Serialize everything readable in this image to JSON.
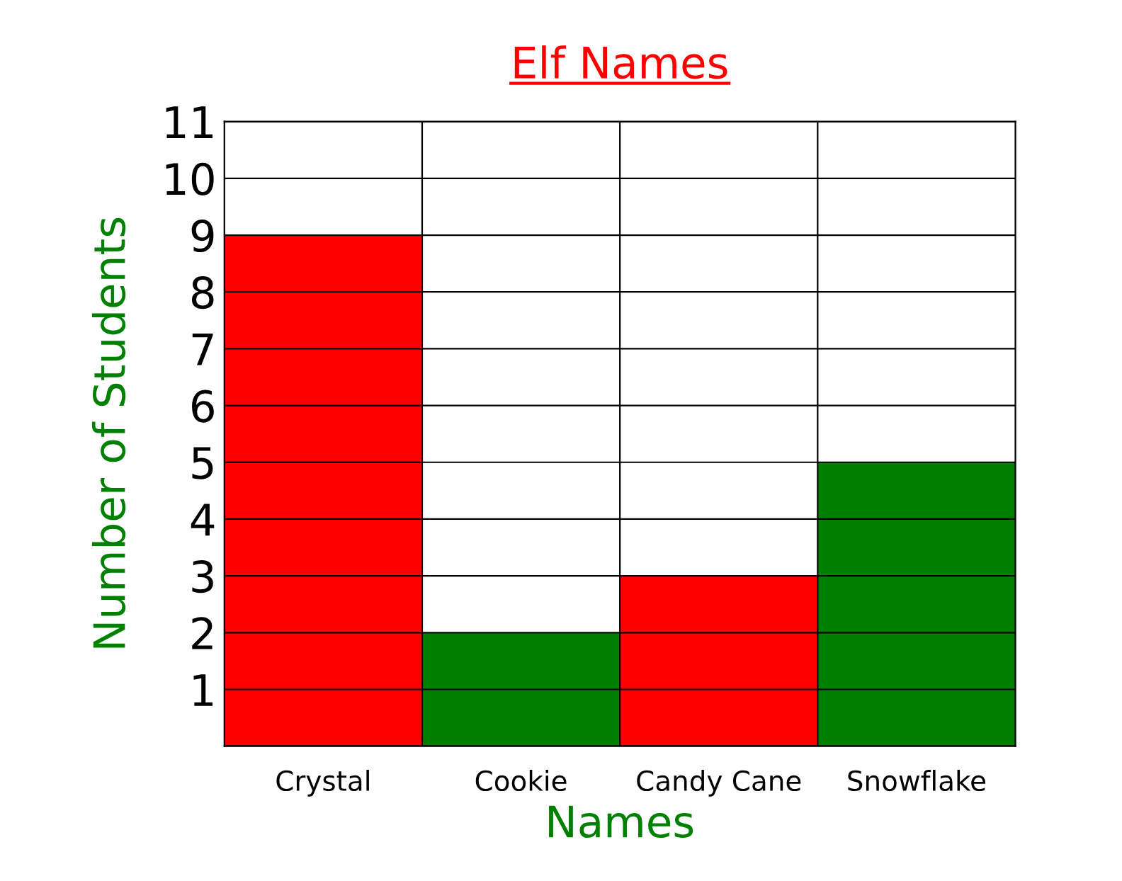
{
  "chart_data": {
    "type": "bar",
    "title": "Elf Names",
    "xlabel": "Names",
    "ylabel": "Number of Students",
    "categories": [
      "Crystal",
      "Cookie",
      "Candy Cane",
      "Snowflake"
    ],
    "values": [
      9,
      2,
      3,
      5
    ],
    "colors": [
      "#ff0000",
      "#008000",
      "#ff0000",
      "#008000"
    ],
    "ylim": [
      0,
      11
    ],
    "yticks": [
      1,
      2,
      3,
      4,
      5,
      6,
      7,
      8,
      9,
      10,
      11
    ],
    "grid": true,
    "legend": false
  }
}
